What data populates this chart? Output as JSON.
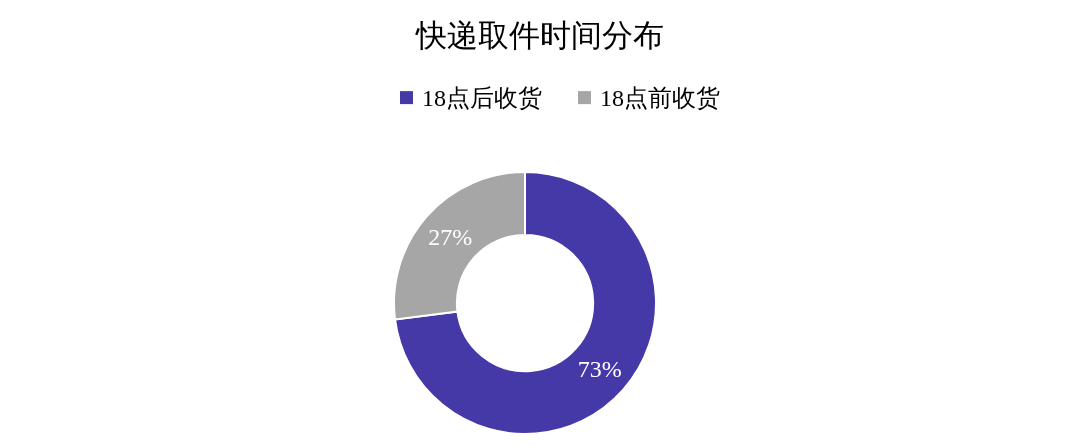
{
  "chart_data": {
    "type": "donut",
    "title": "快递取件时间分布",
    "legend": "top",
    "categories": [
      "18点后收货",
      "18点前收货"
    ],
    "values": [
      73,
      27
    ],
    "colors": [
      "#4539a8",
      "#a6a6a6"
    ],
    "value_labels": [
      "73%",
      "27%"
    ]
  }
}
